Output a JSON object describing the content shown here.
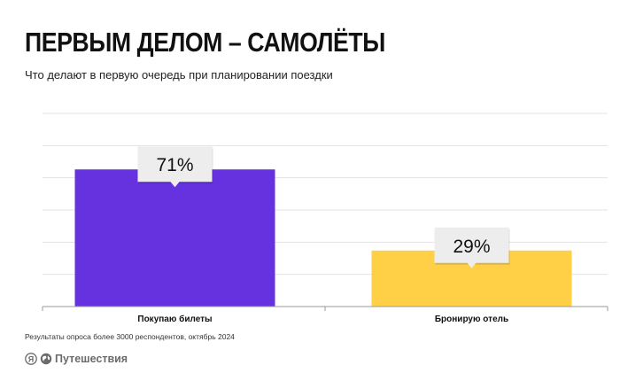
{
  "header": {
    "title": "ПЕРВЫМ ДЕЛОМ – САМОЛЁТЫ",
    "subtitle": "Что делают в первую очередь при планировании поездки"
  },
  "footer": {
    "note": "Результаты опроса более 3000 респондентов, октябрь 2024",
    "brand_mark": "Я",
    "brand_name": "Путешествия"
  },
  "colors": {
    "bar_1": "#6632e0",
    "bar_2": "#ffcf45",
    "label_box": "#ededed",
    "grid": "#e3e3e3",
    "axis": "#9a9a9a"
  },
  "chart_data": {
    "type": "bar",
    "title": "ПЕРВЫМ ДЕЛОМ – САМОЛЁТЫ",
    "subtitle": "Что делают в первую очередь при планировании поездки",
    "categories": [
      "Покупаю билеты",
      "Бронирую отель"
    ],
    "values": [
      71,
      29
    ],
    "data_labels": [
      "71%",
      "29%"
    ],
    "unit": "%",
    "ylim": [
      0,
      100
    ],
    "grid": true,
    "legend": "none"
  }
}
